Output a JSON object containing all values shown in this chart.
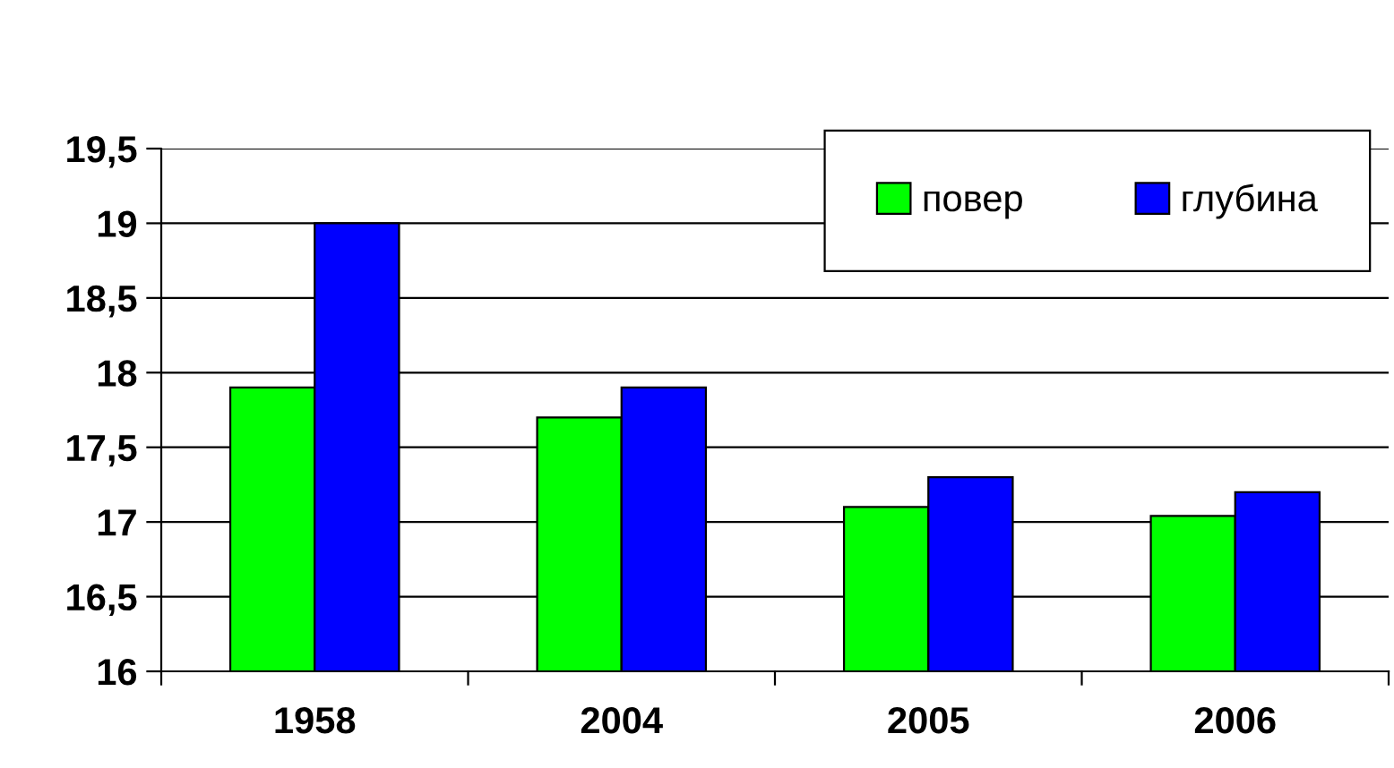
{
  "chart_data": {
    "type": "bar",
    "categories": [
      "1958",
      "2004",
      "2005",
      "2006"
    ],
    "series": [
      {
        "name": "повер",
        "color": "#00ff00",
        "values": [
          17.9,
          17.7,
          17.1,
          17.04
        ]
      },
      {
        "name": "глубина",
        "color": "#0000ff",
        "values": [
          19.0,
          17.9,
          17.3,
          17.2
        ]
      }
    ],
    "ylim": [
      16,
      19.5
    ],
    "yticks": [
      16,
      {
        "value": 16.5,
        "label": "16,5"
      },
      17,
      {
        "value": 17.5,
        "label": "17,5"
      },
      18,
      {
        "value": 18.5,
        "label": "18,5"
      },
      19,
      {
        "value": 19.5,
        "label": "19,5"
      }
    ],
    "grid": "y",
    "legend": "top right"
  }
}
